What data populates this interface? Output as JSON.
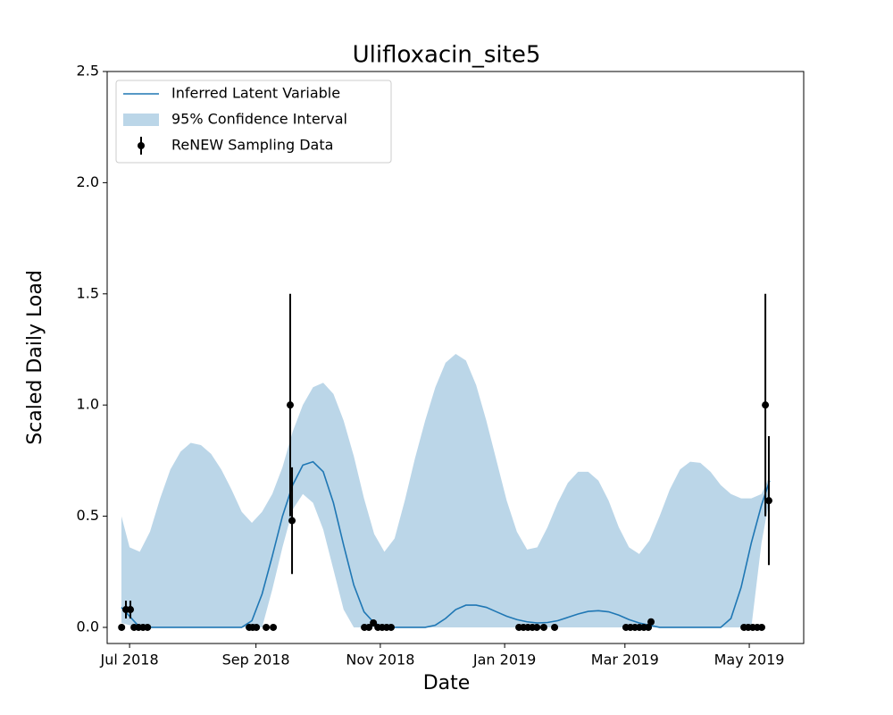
{
  "chart_data": {
    "type": "line",
    "title": "Ulifloxacin_site5",
    "xlabel": "Date",
    "ylabel": "Scaled Daily Load",
    "xlim": [
      -11,
      330.7
    ],
    "ylim": [
      -0.0725,
      2.5
    ],
    "xticks": [
      {
        "value": 0,
        "label": "Jul 2018"
      },
      {
        "value": 62,
        "label": "Sep 2018"
      },
      {
        "value": 123,
        "label": "Nov 2018"
      },
      {
        "value": 184,
        "label": "Jan 2019"
      },
      {
        "value": 243,
        "label": "Mar 2019"
      },
      {
        "value": 304,
        "label": "May 2019"
      }
    ],
    "yticks": [
      {
        "value": 0,
        "label": "0.0"
      },
      {
        "value": 0.5,
        "label": "0.5"
      },
      {
        "value": 1,
        "label": "1.0"
      },
      {
        "value": 1.5,
        "label": "1.5"
      },
      {
        "value": 2,
        "label": "2.0"
      },
      {
        "value": 2.5,
        "label": "2.5"
      }
    ],
    "legend": "upper left",
    "x": [
      -4,
      0,
      5,
      10,
      15,
      20,
      25,
      30,
      35,
      40,
      45,
      50,
      55,
      60,
      65,
      70,
      75,
      80,
      85,
      90,
      95,
      100,
      105,
      110,
      115,
      120,
      125,
      130,
      135,
      140,
      145,
      150,
      155,
      160,
      165,
      170,
      175,
      180,
      185,
      190,
      195,
      200,
      205,
      210,
      215,
      220,
      225,
      230,
      235,
      240,
      245,
      250,
      255,
      260,
      265,
      270,
      275,
      280,
      285,
      290,
      295,
      300,
      305,
      310,
      314
    ],
    "series": [
      {
        "name": "Inferred Latent Variable",
        "color": "#1f77b4",
        "values": [
          0.09,
          0.05,
          0,
          0,
          0,
          0,
          0,
          0,
          0,
          0,
          0,
          0,
          0,
          0.03,
          0.15,
          0.32,
          0.5,
          0.64,
          0.73,
          0.745,
          0.7,
          0.56,
          0.37,
          0.19,
          0.07,
          0.02,
          0,
          0,
          0,
          0,
          0,
          0.01,
          0.04,
          0.08,
          0.1,
          0.1,
          0.09,
          0.07,
          0.05,
          0.035,
          0.025,
          0.02,
          0.022,
          0.03,
          0.045,
          0.06,
          0.072,
          0.075,
          0.07,
          0.055,
          0.035,
          0.02,
          0.01,
          0,
          0,
          0,
          0,
          0,
          0,
          0,
          0.04,
          0.18,
          0.38,
          0.55,
          0.66
        ]
      }
    ],
    "band": {
      "name": "95% Confidence Interval",
      "color": "#bbd6e8",
      "upper": [
        0.5,
        0.36,
        0.34,
        0.43,
        0.58,
        0.71,
        0.79,
        0.83,
        0.82,
        0.78,
        0.71,
        0.62,
        0.52,
        0.47,
        0.52,
        0.6,
        0.72,
        0.88,
        1.0,
        1.08,
        1.1,
        1.05,
        0.93,
        0.77,
        0.58,
        0.42,
        0.34,
        0.4,
        0.57,
        0.76,
        0.93,
        1.08,
        1.19,
        1.23,
        1.2,
        1.09,
        0.93,
        0.75,
        0.57,
        0.43,
        0.35,
        0.36,
        0.45,
        0.56,
        0.65,
        0.7,
        0.7,
        0.66,
        0.57,
        0.45,
        0.36,
        0.33,
        0.39,
        0.5,
        0.62,
        0.71,
        0.745,
        0.74,
        0.7,
        0.64,
        0.6,
        0.58,
        0.58,
        0.6,
        0.68
      ],
      "lower": [
        0.02,
        0.01,
        0,
        0,
        0,
        0,
        0,
        0,
        0,
        0,
        0,
        0,
        0,
        0,
        0,
        0.17,
        0.36,
        0.53,
        0.6,
        0.56,
        0.44,
        0.26,
        0.08,
        0,
        0,
        0,
        0,
        0,
        0,
        0,
        0,
        0,
        0,
        0,
        0,
        0,
        0,
        0,
        0,
        0,
        0,
        0,
        0,
        0,
        0,
        0,
        0,
        0,
        0,
        0,
        0,
        0,
        0,
        0,
        0,
        0,
        0,
        0,
        0,
        0,
        0,
        0,
        0,
        0.38,
        0.58
      ]
    },
    "points": {
      "name": "ReNEW Sampling Data",
      "color": "#000000",
      "x": [
        -3.9,
        -1.8,
        0.4,
        2.2,
        4.4,
        6.6,
        8.8,
        58.7,
        60.4,
        62.2,
        67,
        70.5,
        78.8,
        79.7,
        115.2,
        117.4,
        119.6,
        121.8,
        123.9,
        126.1,
        128.3,
        191,
        193.2,
        195.4,
        197.6,
        199.8,
        203.2,
        208.5,
        243.5,
        245.7,
        247.9,
        250.1,
        252.3,
        254.5,
        255.8,
        301.4,
        303.5,
        305.7,
        307.9,
        310.1,
        311.9,
        313.6
      ],
      "values": [
        0,
        0.08,
        0.08,
        0,
        0,
        0,
        0,
        0,
        0,
        0,
        0,
        0,
        1,
        0.48,
        0,
        0,
        0.02,
        0,
        0,
        0,
        0,
        0,
        0,
        0,
        0,
        0,
        0,
        0,
        0,
        0,
        0,
        0,
        0,
        0,
        0.025,
        0,
        0,
        0,
        0,
        0,
        1,
        0.57
      ],
      "errors": [
        null,
        0.04,
        0.04,
        null,
        null,
        null,
        null,
        null,
        null,
        null,
        null,
        null,
        0.5,
        0.24,
        null,
        null,
        null,
        null,
        null,
        null,
        null,
        null,
        null,
        null,
        null,
        null,
        null,
        null,
        null,
        null,
        null,
        null,
        null,
        null,
        null,
        null,
        null,
        null,
        null,
        null,
        0.5,
        0.29
      ]
    }
  }
}
